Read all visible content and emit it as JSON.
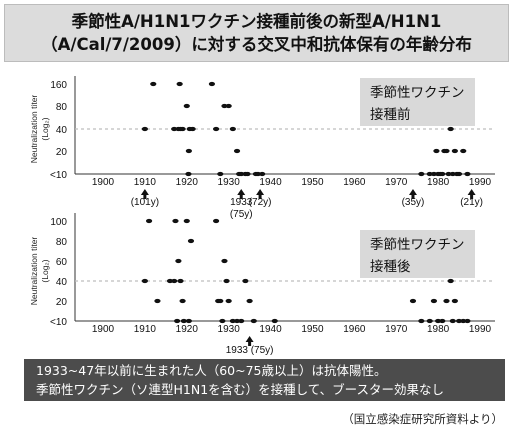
{
  "title": {
    "line1": "季節性A/H1N1ワクチン接種前後の新型A/H1N1",
    "line2": "（A/Cal/7/2009）に対する交叉中和抗体保有の年齢分布"
  },
  "chart_data": [
    {
      "type": "scatter",
      "panel_label": [
        "季節性ワクチン",
        "接種前"
      ],
      "ylabel": "Neutralization titer",
      "ylabel_sub": "(Log₂)",
      "y_categories": [
        "<10",
        "20",
        "40",
        "80",
        "160"
      ],
      "x_ticks": [
        "1900",
        "1910",
        "1920",
        "1930",
        "1940",
        "1950",
        "1960",
        "1970",
        "1980",
        "1990"
      ],
      "xlim": [
        1900,
        1990
      ],
      "reference_line": "40",
      "grid": false,
      "arrows": [
        {
          "x": 1910,
          "label": "(101y)"
        },
        {
          "x": 1933,
          "label": "1933",
          "sublabel": "(75y)"
        },
        {
          "x": 1937.5,
          "label": "(72y)"
        },
        {
          "x": 1974,
          "label": "(35y)"
        },
        {
          "x": 1988,
          "label": "(21y)"
        }
      ],
      "points": [
        [
          1910,
          "40"
        ],
        [
          1912,
          "160"
        ],
        [
          1917,
          "40"
        ],
        [
          1918,
          "40"
        ],
        [
          1918.5,
          "40"
        ],
        [
          1918.3,
          "160"
        ],
        [
          1919,
          "40"
        ],
        [
          1920,
          "80"
        ],
        [
          1920.5,
          "20"
        ],
        [
          1920.4,
          "<10"
        ],
        [
          1920.7,
          "40"
        ],
        [
          1921.4,
          "40"
        ],
        [
          1926,
          "160"
        ],
        [
          1927,
          "40"
        ],
        [
          1928,
          "<10"
        ],
        [
          1929,
          "80"
        ],
        [
          1930,
          "80"
        ],
        [
          1931,
          "40"
        ],
        [
          1932,
          "20"
        ],
        [
          1932.5,
          "<10"
        ],
        [
          1933,
          "<10"
        ],
        [
          1934,
          "<10"
        ],
        [
          1934.5,
          "<10"
        ],
        [
          1936.5,
          "<10"
        ],
        [
          1937,
          "<10"
        ],
        [
          1938,
          "<10"
        ],
        [
          1976,
          "<10"
        ],
        [
          1978,
          "<10"
        ],
        [
          1979,
          "<10"
        ],
        [
          1979.6,
          "20"
        ],
        [
          1980,
          "<10"
        ],
        [
          1980.5,
          "<10"
        ],
        [
          1981,
          "<10"
        ],
        [
          1981.5,
          "20"
        ],
        [
          1982,
          "20"
        ],
        [
          1982.5,
          "<10"
        ],
        [
          1983,
          "40"
        ],
        [
          1983.5,
          "<10"
        ],
        [
          1984,
          "20"
        ],
        [
          1984.5,
          "<10"
        ],
        [
          1985,
          "<10"
        ],
        [
          1986,
          "20"
        ],
        [
          1987,
          "<10"
        ]
      ]
    },
    {
      "type": "scatter",
      "panel_label": [
        "季節性ワクチン",
        "接種後"
      ],
      "ylabel": "Neutralization titer",
      "ylabel_sub": "(Log₂)",
      "y_categories": [
        "<10",
        "20",
        "40",
        "60",
        "80",
        "100"
      ],
      "x_ticks": [
        "1900",
        "1910",
        "1920",
        "1930",
        "1940",
        "1950",
        "1960",
        "1970",
        "1980",
        "1990"
      ],
      "xlim": [
        1900,
        1990
      ],
      "reference_line": "40",
      "grid": false,
      "arrows": [
        {
          "x": 1935,
          "label": "1933 (75y)"
        }
      ],
      "points": [
        [
          1910,
          "40"
        ],
        [
          1911,
          "100"
        ],
        [
          1913,
          "20"
        ],
        [
          1916,
          "40"
        ],
        [
          1917,
          "40"
        ],
        [
          1917.3,
          "100"
        ],
        [
          1917.7,
          "<10"
        ],
        [
          1918,
          "60"
        ],
        [
          1918.5,
          "40"
        ],
        [
          1919,
          "20"
        ],
        [
          1919.3,
          "<10"
        ],
        [
          1920,
          "100"
        ],
        [
          1920.5,
          "<10"
        ],
        [
          1921,
          "80"
        ],
        [
          1927,
          "100"
        ],
        [
          1927.5,
          "20"
        ],
        [
          1928,
          "20"
        ],
        [
          1928.5,
          "<10"
        ],
        [
          1929,
          "60"
        ],
        [
          1929.5,
          "40"
        ],
        [
          1930,
          "20"
        ],
        [
          1931,
          "<10"
        ],
        [
          1932,
          "<10"
        ],
        [
          1933,
          "<10"
        ],
        [
          1934,
          "40"
        ],
        [
          1935,
          "20"
        ],
        [
          1936,
          "<10"
        ],
        [
          1941,
          "<10"
        ],
        [
          1974,
          "20"
        ],
        [
          1976,
          "<10"
        ],
        [
          1978,
          "<10"
        ],
        [
          1979,
          "20"
        ],
        [
          1980,
          "<10"
        ],
        [
          1981,
          "<10"
        ],
        [
          1982,
          "20"
        ],
        [
          1983,
          "40"
        ],
        [
          1983.5,
          "<10"
        ],
        [
          1984,
          "20"
        ],
        [
          1985,
          "<10"
        ],
        [
          1986,
          "<10"
        ],
        [
          1987,
          "<10"
        ]
      ]
    }
  ],
  "note": {
    "line1": "1933~47年以前に生まれた人（60~75歳以上）は抗体陽性。",
    "line2": "季節性ワクチン（ソ連型H1N1を含む）を接種して、ブースター効果なし"
  },
  "source": "（国立感染症研究所資料より）"
}
